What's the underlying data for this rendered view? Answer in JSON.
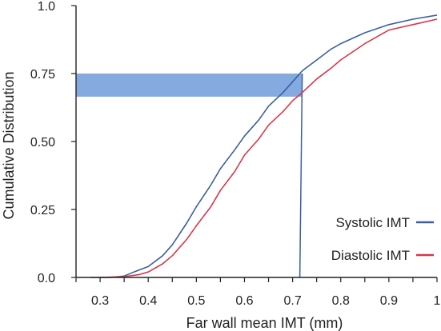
{
  "chart_data": {
    "type": "line",
    "title": "",
    "xlabel": "Far wall mean IMT (mm)",
    "ylabel": "Cumulative Distribution",
    "xlim": [
      0.25,
      1.0
    ],
    "ylim": [
      0.0,
      1.0
    ],
    "grid": false,
    "legend_placement": "bottom-right",
    "x_ticks": [
      {
        "value": 0.3,
        "label": "0.3"
      },
      {
        "value": 0.4,
        "label": "0.4"
      },
      {
        "value": 0.5,
        "label": "0.5"
      },
      {
        "value": 0.6,
        "label": "0.6"
      },
      {
        "value": 0.7,
        "label": "0.7"
      },
      {
        "value": 0.8,
        "label": "0.8"
      },
      {
        "value": 0.9,
        "label": "0.9"
      },
      {
        "value": 1.0,
        "label": "1"
      }
    ],
    "y_ticks": [
      {
        "value": 0.0,
        "label": "0.0"
      },
      {
        "value": 0.25,
        "label": "0.25"
      },
      {
        "value": 0.5,
        "label": "0.50"
      },
      {
        "value": 0.75,
        "label": "0.75"
      },
      {
        "value": 1.0,
        "label": "1.0"
      }
    ],
    "series": [
      {
        "name": "Systolic IMT",
        "color": "#3a5fa5",
        "x": [
          0.28,
          0.32,
          0.35,
          0.37,
          0.4,
          0.43,
          0.45,
          0.48,
          0.5,
          0.53,
          0.55,
          0.58,
          0.6,
          0.63,
          0.65,
          0.68,
          0.7,
          0.72,
          0.75,
          0.78,
          0.8,
          0.85,
          0.9,
          0.95,
          1.0
        ],
        "y": [
          0.0,
          0.0,
          0.005,
          0.02,
          0.04,
          0.08,
          0.12,
          0.2,
          0.26,
          0.34,
          0.4,
          0.47,
          0.52,
          0.58,
          0.63,
          0.68,
          0.72,
          0.76,
          0.8,
          0.84,
          0.86,
          0.9,
          0.93,
          0.95,
          0.965
        ]
      },
      {
        "name": "Diastolic IMT",
        "color": "#d9364a",
        "x": [
          0.3,
          0.35,
          0.38,
          0.4,
          0.43,
          0.45,
          0.48,
          0.5,
          0.53,
          0.55,
          0.58,
          0.6,
          0.63,
          0.65,
          0.68,
          0.7,
          0.72,
          0.75,
          0.78,
          0.8,
          0.85,
          0.9,
          0.95,
          1.0
        ],
        "y": [
          0.0,
          0.003,
          0.01,
          0.02,
          0.05,
          0.08,
          0.14,
          0.19,
          0.26,
          0.32,
          0.39,
          0.45,
          0.51,
          0.56,
          0.61,
          0.65,
          0.68,
          0.73,
          0.77,
          0.8,
          0.86,
          0.91,
          0.93,
          0.95
        ]
      }
    ],
    "annotations": {
      "shaded_band": {
        "y_from": 0.665,
        "y_to": 0.75,
        "x_from": 0.25,
        "x_to": 0.72,
        "color": "#5b8ed6"
      },
      "vertical_line": {
        "x": 0.72,
        "x_bottom": 0.715,
        "y_top": 0.75,
        "color": "#3a5fa5"
      }
    }
  }
}
